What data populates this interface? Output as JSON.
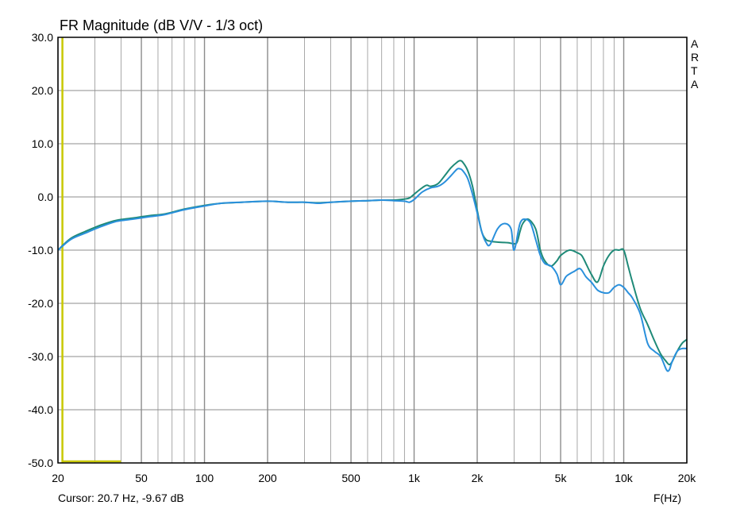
{
  "chart_data": {
    "type": "line",
    "title": "FR Magnitude (dB V/V - 1/3 oct)",
    "xlabel": "F(Hz)",
    "ylabel": "",
    "x_scale": "log",
    "xlim": [
      20,
      20000
    ],
    "ylim": [
      -50,
      30
    ],
    "grid": true,
    "y_ticks": [
      30,
      20,
      10,
      0,
      -10,
      -20,
      -30,
      -40,
      -50
    ],
    "y_tick_labels": [
      "30.0",
      "20.0",
      "10.0",
      "0.0",
      "-10.0",
      "-20.0",
      "-30.0",
      "-40.0",
      "-50.0"
    ],
    "x_ticks": [
      20,
      50,
      100,
      200,
      500,
      1000,
      2000,
      5000,
      10000,
      20000
    ],
    "x_tick_labels": [
      "20",
      "50",
      "100",
      "200",
      "500",
      "1k",
      "2k",
      "5k",
      "10k",
      "20k"
    ],
    "minor_x_ticks": [
      30,
      40,
      60,
      70,
      80,
      90,
      300,
      400,
      600,
      700,
      800,
      900,
      3000,
      4000,
      6000,
      7000,
      8000,
      9000
    ],
    "watermark": [
      "A",
      "R",
      "T",
      "A"
    ],
    "cursor_text": "Cursor: 20.7 Hz, -9.67 dB",
    "colors": {
      "series_1": "#1f8a78",
      "series_2": "#2a90dc",
      "cursor_marker": "#c8c800",
      "grid": "#a8a8a8",
      "frame": "#000000"
    },
    "cursor_marker": {
      "x": [
        21,
        40
      ],
      "y": [
        -50,
        30
      ]
    },
    "series": [
      {
        "x": [
          20,
          23,
          27,
          32,
          38,
          45,
          55,
          65,
          80,
          100,
          120,
          150,
          200,
          250,
          300,
          350,
          400,
          500,
          600,
          700,
          800,
          900,
          950,
          1000,
          1050,
          1100,
          1150,
          1200,
          1300,
          1400,
          1500,
          1600,
          1650,
          1700,
          1800,
          1900,
          2000,
          2100,
          2200,
          2300,
          2500,
          2800,
          3000,
          3100,
          3200,
          3300,
          3500,
          3800,
          4000,
          4200,
          4500,
          4800,
          5000,
          5500,
          6000,
          6300,
          6600,
          7000,
          7500,
          8000,
          8500,
          9000,
          9500,
          10000,
          10500,
          11000,
          12000,
          13000,
          14000,
          15000,
          16000,
          16500,
          17000,
          18000,
          19000,
          20000
        ],
        "y": [
          -10.0,
          -7.8,
          -6.5,
          -5.3,
          -4.4,
          -4.0,
          -3.5,
          -3.2,
          -2.3,
          -1.6,
          -1.2,
          -1.0,
          -0.8,
          -1.0,
          -1.0,
          -1.1,
          -1.0,
          -0.8,
          -0.7,
          -0.6,
          -0.6,
          -0.4,
          -0.2,
          0.5,
          1.2,
          1.8,
          2.2,
          2.0,
          2.5,
          4.0,
          5.5,
          6.5,
          6.8,
          6.6,
          5.0,
          2.0,
          -2.5,
          -6.5,
          -8.0,
          -8.3,
          -8.5,
          -8.6,
          -8.8,
          -8.5,
          -6.5,
          -5.0,
          -4.2,
          -6.0,
          -10.0,
          -12.0,
          -13.0,
          -12.0,
          -11.0,
          -10.0,
          -10.5,
          -11.0,
          -12.5,
          -14.5,
          -16.0,
          -13.0,
          -11.0,
          -10.0,
          -10.0,
          -10.0,
          -13.0,
          -16.0,
          -21.0,
          -24.0,
          -27.0,
          -29.5,
          -31.0,
          -31.5,
          -31.0,
          -29.0,
          -27.5,
          -26.8
        ]
      },
      {
        "x": [
          20,
          23,
          27,
          32,
          38,
          45,
          55,
          65,
          80,
          100,
          120,
          150,
          200,
          250,
          300,
          350,
          400,
          500,
          600,
          700,
          800,
          900,
          950,
          1000,
          1050,
          1100,
          1200,
          1300,
          1400,
          1500,
          1600,
          1650,
          1700,
          1800,
          1900,
          2000,
          2100,
          2200,
          2300,
          2500,
          2700,
          2900,
          3000,
          3200,
          3400,
          3600,
          3800,
          4000,
          4200,
          4500,
          4800,
          5000,
          5300,
          5500,
          5800,
          6200,
          6600,
          7000,
          7500,
          8000,
          8500,
          9000,
          9500,
          10000,
          10500,
          11000,
          12000,
          13000,
          14000,
          15000,
          16000,
          16500,
          17000,
          18000,
          19000,
          20000
        ],
        "y": [
          -10.0,
          -8.0,
          -6.8,
          -5.6,
          -4.6,
          -4.2,
          -3.7,
          -3.3,
          -2.4,
          -1.7,
          -1.2,
          -1.0,
          -0.8,
          -1.0,
          -1.0,
          -1.2,
          -1.0,
          -0.8,
          -0.7,
          -0.6,
          -0.7,
          -0.8,
          -1.0,
          -0.5,
          0.3,
          1.0,
          1.7,
          2.0,
          2.8,
          4.0,
          5.2,
          5.3,
          5.0,
          3.5,
          0.5,
          -3.0,
          -6.5,
          -8.5,
          -9.0,
          -6.0,
          -5.0,
          -6.0,
          -10.0,
          -5.0,
          -4.2,
          -5.0,
          -8.0,
          -11.0,
          -12.5,
          -13.0,
          -14.5,
          -16.5,
          -15.0,
          -14.5,
          -14.0,
          -13.5,
          -15.0,
          -16.0,
          -17.5,
          -18.0,
          -18.0,
          -17.0,
          -16.5,
          -17.0,
          -18.0,
          -19.0,
          -22.0,
          -27.5,
          -29.0,
          -30.0,
          -32.5,
          -32.5,
          -31.0,
          -29.0,
          -28.5,
          -28.5
        ]
      }
    ]
  }
}
